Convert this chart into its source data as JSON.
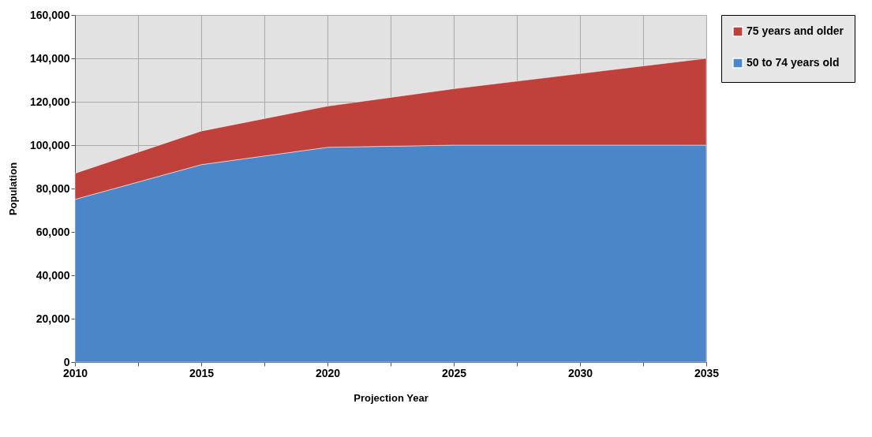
{
  "chart_data": {
    "type": "area",
    "xlabel": "Projection Year",
    "ylabel": "Population",
    "stacked": true,
    "x": [
      2010,
      2015,
      2020,
      2025,
      2030,
      2035
    ],
    "series": [
      {
        "name": "50 to 74 years old",
        "color": "#4a86c8",
        "values": [
          75000,
          91000,
          99000,
          100000,
          100000,
          100000
        ]
      },
      {
        "name": "75 years and older",
        "color": "#c0413b",
        "values": [
          12000,
          15500,
          19000,
          26000,
          33000,
          40000
        ]
      }
    ],
    "xlim": [
      2010,
      2035
    ],
    "xticks": [
      2010,
      {
        "value": 2012.5,
        "label": null
      },
      2015,
      {
        "value": 2017.5,
        "label": null
      },
      2020,
      {
        "value": 2022.5,
        "label": null
      },
      2025,
      {
        "value": 2027.5,
        "label": null
      },
      2030,
      {
        "value": 2032.5,
        "label": null
      },
      2035
    ],
    "ylim": [
      0,
      160000
    ],
    "yticks": [
      0,
      {
        "value": 20000,
        "label": "20,000"
      },
      {
        "value": 40000,
        "label": "40,000"
      },
      {
        "value": 60000,
        "label": "60,000"
      },
      {
        "value": 80000,
        "label": "80,000"
      },
      {
        "value": 100000,
        "label": "100,000"
      },
      {
        "value": 120000,
        "label": "120,000"
      },
      {
        "value": 140000,
        "label": "140,000"
      },
      {
        "value": 160000,
        "label": "160,000"
      }
    ],
    "grid": true,
    "legend": "right"
  }
}
